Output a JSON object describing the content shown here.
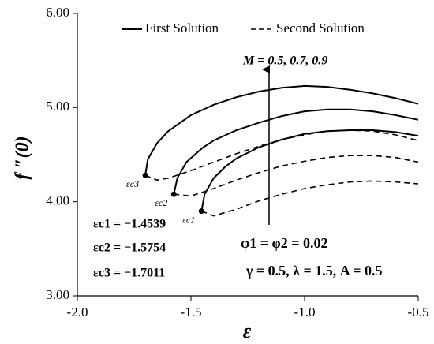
{
  "chart_data": {
    "type": "line",
    "xlabel": "ε",
    "ylabel": "f ″(0)",
    "xlim": [
      -2.0,
      -0.5
    ],
    "xticks": [
      {
        "value": -2.0,
        "label": "-2.0"
      },
      {
        "value": -1.5,
        "label": "-1.5"
      },
      {
        "value": -1.0,
        "label": "-1.0"
      },
      {
        "value": -0.5,
        "label": "-0.5"
      }
    ],
    "ylim": [
      3.0,
      6.0
    ],
    "yticks": [
      {
        "value": 3.0,
        "label": "3.00"
      },
      {
        "value": 4.0,
        "label": "4.00"
      },
      {
        "value": 5.0,
        "label": "5.00"
      },
      {
        "value": 6.0,
        "label": "6.00"
      }
    ],
    "color": "#000000",
    "series": [
      {
        "name": "First Solution",
        "dash": false,
        "curves": [
          {
            "x": [
              -1.4539,
              -1.44,
              -1.4,
              -1.35,
              -1.3,
              -1.2,
              -1.1,
              -1.0,
              -0.9,
              -0.8,
              -0.7,
              -0.6,
              -0.5
            ],
            "values": [
              3.9,
              4.08,
              4.25,
              4.37,
              4.46,
              4.58,
              4.66,
              4.72,
              4.75,
              4.76,
              4.76,
              4.74,
              4.7
            ]
          },
          {
            "x": [
              -1.5754,
              -1.56,
              -1.52,
              -1.45,
              -1.4,
              -1.3,
              -1.2,
              -1.1,
              -1.0,
              -0.9,
              -0.8,
              -0.7,
              -0.6,
              -0.5
            ],
            "values": [
              4.08,
              4.25,
              4.42,
              4.57,
              4.65,
              4.76,
              4.84,
              4.91,
              4.96,
              4.98,
              4.98,
              4.96,
              4.92,
              4.87
            ]
          },
          {
            "x": [
              -1.7011,
              -1.69,
              -1.65,
              -1.6,
              -1.5,
              -1.4,
              -1.3,
              -1.2,
              -1.1,
              -1.0,
              -0.9,
              -0.8,
              -0.7,
              -0.6,
              -0.5
            ],
            "values": [
              4.28,
              4.45,
              4.62,
              4.75,
              4.92,
              5.03,
              5.11,
              5.17,
              5.21,
              5.23,
              5.22,
              5.19,
              5.15,
              5.1,
              5.04
            ]
          }
        ]
      },
      {
        "name": "Second Solution",
        "dash": true,
        "curves": [
          {
            "x": [
              -1.4539,
              -1.4,
              -1.3,
              -1.2,
              -1.1,
              -1.0,
              -0.9,
              -0.8,
              -0.7,
              -0.6,
              -0.5
            ],
            "values": [
              3.9,
              3.85,
              3.92,
              4.01,
              4.08,
              4.14,
              4.18,
              4.21,
              4.22,
              4.21,
              4.19
            ]
          },
          {
            "x": [
              -1.5754,
              -1.5,
              -1.4,
              -1.3,
              -1.2,
              -1.1,
              -1.0,
              -0.9,
              -0.8,
              -0.7,
              -0.6,
              -0.5
            ],
            "values": [
              4.08,
              4.06,
              4.14,
              4.23,
              4.31,
              4.38,
              4.43,
              4.47,
              4.49,
              4.49,
              4.47,
              4.42
            ]
          },
          {
            "x": [
              -1.7011,
              -1.65,
              -1.6,
              -1.5,
              -1.4,
              -1.3,
              -1.2,
              -1.1,
              -1.0,
              -0.9,
              -0.8,
              -0.7,
              -0.6,
              -0.5
            ],
            "values": [
              4.28,
              4.23,
              4.25,
              4.33,
              4.42,
              4.51,
              4.59,
              4.66,
              4.71,
              4.75,
              4.76,
              4.75,
              4.71,
              4.65
            ]
          }
        ]
      }
    ],
    "critical_points": {
      "labels": [
        "εc1",
        "εc2",
        "εc3"
      ],
      "x": [
        -1.4539,
        -1.5754,
        -1.7011
      ],
      "values": [
        3.9,
        4.08,
        4.28
      ]
    },
    "annotations": [
      "M = 0.5, 0.7, 0.9",
      "εc1 = −1.4539",
      "εc2 = −1.5754",
      "εc3 = −1.7011",
      "φ1 = φ2 = 0.02",
      "γ = 0.5, λ = 1.5, A = 0.5"
    ]
  }
}
